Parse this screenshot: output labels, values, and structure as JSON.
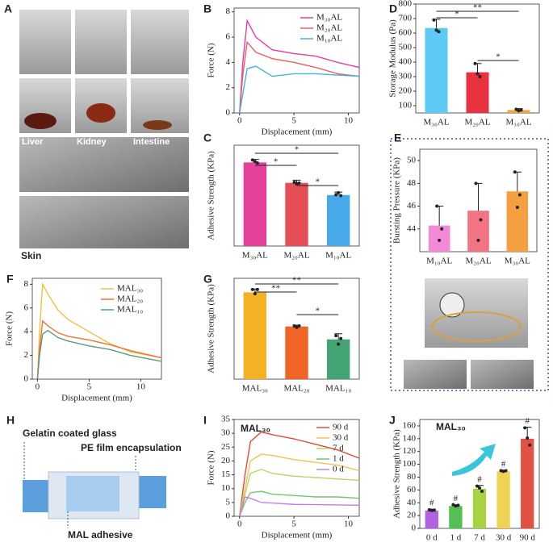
{
  "photo_panel": {
    "panel": "A",
    "labels": [
      "Liver",
      "Kidney",
      "Intestine",
      "Skin"
    ]
  },
  "diagram": {
    "panel": "H",
    "labels": [
      "Gelatin coated glass",
      "PE film encapsulation",
      "MAL adhesive"
    ]
  },
  "chart_data": [
    {
      "panel": "B",
      "type": "line",
      "xlabel": "Displacement (mm)",
      "ylabel": "Force (N)",
      "x": [
        0,
        0.3,
        0.7,
        1.5,
        3,
        5,
        7,
        9,
        11
      ],
      "xlim": [
        -0.5,
        11
      ],
      "xticks": [
        0,
        5,
        10
      ],
      "ylim": [
        0,
        8.3
      ],
      "yticks": [
        0,
        2,
        4,
        6,
        8
      ],
      "series": [
        {
          "name": "M₃₀AL",
          "color": "#e23fa6",
          "values": [
            0,
            4,
            7.3,
            6,
            5,
            4.7,
            4.5,
            4,
            3.6
          ]
        },
        {
          "name": "M₂₀AL",
          "color": "#ea6068",
          "values": [
            0,
            3,
            5.6,
            4.8,
            4.3,
            4.0,
            3.6,
            3.1,
            2.9
          ]
        },
        {
          "name": "M₁₀AL",
          "color": "#3fb6e0",
          "values": [
            0,
            1.5,
            3.5,
            3.7,
            2.9,
            3.1,
            3.1,
            3.0,
            2.9
          ]
        }
      ]
    },
    {
      "panel": "D",
      "type": "bar",
      "ylabel": "Storage Modulus (Pa)",
      "categories": [
        "M₃₀AL",
        "M₂₀AL",
        "M₁₀AL"
      ],
      "values": [
        635,
        330,
        70
      ],
      "errors": [
        60,
        60,
        10
      ],
      "points": [
        [
          690,
          620,
          610
        ],
        [
          390,
          320,
          300
        ],
        [
          75,
          65,
          70
        ]
      ],
      "colors": [
        "#5ccaf5",
        "#e8323f",
        "#f0a43a"
      ],
      "ylim": [
        50,
        800
      ],
      "yticks": [
        100,
        200,
        300,
        400,
        500,
        600,
        700,
        800
      ],
      "significance": [
        "*",
        "**",
        "*"
      ]
    },
    {
      "panel": "C",
      "type": "bar",
      "ylabel": "Adhesive Strength (KPa)",
      "categories": [
        "M₃₀AL",
        "M₂₀AL",
        "M₁₀AL"
      ],
      "values": [
        28.2,
        21.3,
        17.2
      ],
      "errors": [
        1,
        0.9,
        1
      ],
      "points": [
        [
          29,
          28.5,
          28
        ],
        [
          21.5,
          21,
          21.2
        ],
        [
          17.3,
          18,
          17
        ]
      ],
      "colors": [
        "#e5409c",
        "#e64e55",
        "#45a9ea"
      ],
      "ylim": [
        0,
        34
      ],
      "significance": [
        "*",
        "*",
        "*"
      ]
    },
    {
      "panel": "E",
      "type": "bar",
      "ylabel": "Bursting Pressure (KPa)",
      "categories": [
        "M₁₀AL",
        "M₂₀AL",
        "M₃₀AL"
      ],
      "values": [
        44.3,
        45.6,
        47.3
      ],
      "errors": [
        1.7,
        2.4,
        1.7
      ],
      "points": [
        [
          46,
          43,
          44
        ],
        [
          48,
          43,
          44.8
        ],
        [
          49,
          45.9,
          47
        ]
      ],
      "colors": [
        "#f28ad6",
        "#f27482",
        "#f4a040"
      ],
      "ylim": [
        42,
        51
      ],
      "yticks": [
        44,
        46,
        48,
        50
      ]
    },
    {
      "panel": "F",
      "type": "line",
      "xlabel": "Displacement (mm)",
      "ylabel": "Force (N)",
      "x": [
        0,
        0.2,
        0.5,
        1,
        2,
        3,
        5,
        7,
        9,
        12
      ],
      "xlim": [
        -0.5,
        12
      ],
      "xticks": [
        0,
        5,
        10
      ],
      "ylim": [
        0,
        8.5
      ],
      "yticks": [
        0,
        2,
        4,
        6,
        8
      ],
      "series": [
        {
          "name": "MAL₃₀",
          "color": "#f2c13e",
          "values": [
            0,
            4,
            8.0,
            7.2,
            5.8,
            5,
            4,
            3,
            2.3,
            1.8
          ]
        },
        {
          "name": "MAL₂₀",
          "color": "#f07330",
          "values": [
            0,
            2.5,
            4.9,
            4.5,
            3.9,
            3.6,
            3.3,
            2.9,
            2.4,
            1.8
          ]
        },
        {
          "name": "MAL₁₀",
          "color": "#5a9a80",
          "values": [
            0,
            2,
            3.8,
            4.1,
            3.5,
            3.2,
            2.8,
            2.5,
            2,
            1.5
          ]
        }
      ]
    },
    {
      "panel": "G",
      "type": "bar",
      "ylabel": "Adhesive Strength (KPa)",
      "categories": [
        "MAL₃₀",
        "MAL₂₀",
        "MAL₁₀"
      ],
      "values": [
        31,
        18.8,
        14.2
      ],
      "errors": [
        1.2,
        0.5,
        2
      ],
      "points": [
        [
          32,
          30.5,
          32
        ],
        [
          19,
          18.5,
          19
        ],
        [
          15.5,
          12.5,
          14.5
        ]
      ],
      "colors": [
        "#f3b225",
        "#f06426",
        "#44a373"
      ],
      "ylim": [
        0,
        36
      ],
      "significance": [
        "**",
        "**",
        "*"
      ]
    },
    {
      "panel": "I",
      "type": "line",
      "xlabel": "Displacement (mm)",
      "ylabel": "Force (N)",
      "annotation": "MAL₃₀",
      "x": [
        0,
        0.5,
        1,
        2,
        3,
        5,
        7,
        9,
        11
      ],
      "xlim": [
        -0.5,
        11
      ],
      "xticks": [
        0,
        5,
        10
      ],
      "ylim": [
        0,
        35
      ],
      "yticks": [
        0,
        5,
        10,
        15,
        20,
        25,
        30,
        35
      ],
      "series": [
        {
          "name": "90 d",
          "color": "#e04a36",
          "values": [
            0,
            15,
            27,
            30.5,
            29.5,
            28,
            26,
            24,
            21
          ]
        },
        {
          "name": "30 d",
          "color": "#f2c453",
          "values": [
            0,
            10,
            20,
            22.5,
            22,
            20.5,
            19.5,
            18.5,
            16.5
          ]
        },
        {
          "name": "7 d",
          "color": "#b4d860",
          "values": [
            0,
            8,
            15.5,
            17,
            15.5,
            14.5,
            14,
            13.5,
            13
          ]
        },
        {
          "name": "1 d",
          "color": "#6ec86e",
          "values": [
            0,
            5,
            8.5,
            9,
            8,
            7.5,
            7,
            7,
            6.5
          ]
        },
        {
          "name": "0 d",
          "color": "#c37fe2",
          "values": [
            0,
            7,
            6.5,
            5,
            4.8,
            4.3,
            4.2,
            4.1,
            4
          ]
        }
      ]
    },
    {
      "panel": "J",
      "type": "bar",
      "ylabel": "Adhesive Strength (KPa)",
      "annotation": "MAL₃₀",
      "categories": [
        "0 d",
        "1 d",
        "7 d",
        "30 d",
        "90 d"
      ],
      "values": [
        28,
        35,
        62,
        89,
        140
      ],
      "errors": [
        2,
        2,
        5,
        2,
        18
      ],
      "points": [
        [
          29,
          28,
          28.5
        ],
        [
          37,
          35,
          36
        ],
        [
          66,
          63,
          58
        ],
        [
          90,
          89,
          90
        ],
        [
          157,
          141,
          130
        ]
      ],
      "colors": [
        "#b062e0",
        "#52c052",
        "#a9d242",
        "#f0d254",
        "#e15243"
      ],
      "ylim": [
        0,
        170
      ],
      "yticks": [
        0,
        20,
        40,
        60,
        80,
        100,
        120,
        140,
        160
      ],
      "bar_labels": [
        "#",
        "#",
        "#",
        "#",
        "#"
      ]
    }
  ]
}
